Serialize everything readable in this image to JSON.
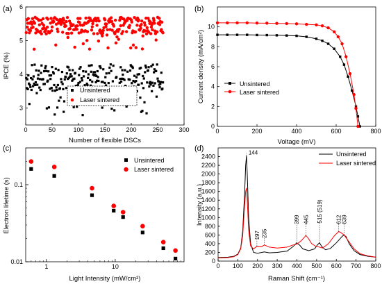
{
  "chart_data": [
    {
      "panel": "(a)",
      "type": "scatter",
      "xlabel": "Number of flexible DSCs",
      "ylabel": "IPCE (%)",
      "xlim": [
        0,
        300
      ],
      "ylim": [
        2.5,
        6.0
      ],
      "xticks": [
        0,
        50,
        100,
        150,
        200,
        250,
        300
      ],
      "yticks": [
        3,
        4,
        5,
        6
      ],
      "legend": "bottom-right, dashed box",
      "series": [
        {
          "name": "Unsintered",
          "marker": "square",
          "color": "#000000",
          "n": 260,
          "typical_range": [
            3.5,
            4.3
          ],
          "mean": 4.05,
          "min": 2.75
        },
        {
          "name": "Laser sintered",
          "marker": "circle",
          "color": "#ff0000",
          "n": 260,
          "typical_range": [
            5.2,
            5.7
          ],
          "mean": 5.45,
          "min": 4.7
        }
      ]
    },
    {
      "panel": "(b)",
      "type": "line",
      "xlabel": "Voltage (mV)",
      "ylabel": "Current density (mA/cm²)",
      "xlim": [
        0,
        800
      ],
      "ylim": [
        0,
        12
      ],
      "xticks": [
        0,
        200,
        400,
        600,
        800
      ],
      "yticks": [
        0,
        2,
        4,
        6,
        8,
        10
      ],
      "legend": "bottom-left",
      "series": [
        {
          "name": "Unsintered",
          "marker": "square",
          "color": "#000000",
          "x": [
            0,
            50,
            100,
            150,
            200,
            250,
            300,
            350,
            400,
            450,
            500,
            530,
            560,
            590,
            620,
            640,
            660,
            680,
            700,
            710,
            720
          ],
          "y": [
            9.2,
            9.2,
            9.2,
            9.2,
            9.18,
            9.17,
            9.15,
            9.13,
            9.1,
            9.0,
            8.8,
            8.6,
            8.3,
            7.8,
            7.0,
            6.2,
            5.0,
            3.6,
            2.0,
            1.0,
            0
          ]
        },
        {
          "name": "Laser sintered",
          "marker": "circle",
          "color": "#ff0000",
          "x": [
            0,
            50,
            100,
            150,
            200,
            250,
            300,
            350,
            400,
            450,
            500,
            530,
            560,
            590,
            610,
            630,
            650,
            670,
            690,
            700,
            710
          ],
          "y": [
            10.4,
            10.4,
            10.4,
            10.4,
            10.38,
            10.37,
            10.35,
            10.33,
            10.3,
            10.25,
            10.2,
            10.1,
            9.9,
            9.5,
            9.0,
            8.3,
            7.0,
            5.3,
            3.2,
            1.8,
            0
          ]
        }
      ]
    },
    {
      "panel": "(c)",
      "type": "scatter",
      "xlabel": "Light Intensity (mW/cm²)",
      "ylabel": "Electron lifetime (s)",
      "xscale": "log",
      "yscale": "log",
      "xlim": [
        0.5,
        100
      ],
      "ylim": [
        0.01,
        0.3
      ],
      "legend": "top-right",
      "series": [
        {
          "name": "Unsintered",
          "marker": "square",
          "color": "#000000",
          "x": [
            0.6,
            1.3,
            4.6,
            9.5,
            13,
            25,
            50,
            75
          ],
          "y": [
            0.16,
            0.13,
            0.073,
            0.046,
            0.038,
            0.024,
            0.015,
            0.011
          ]
        },
        {
          "name": "Laser sintered",
          "marker": "circle",
          "color": "#ff0000",
          "x": [
            0.6,
            1.3,
            4.6,
            9.5,
            13,
            25,
            50,
            75
          ],
          "y": [
            0.2,
            0.17,
            0.09,
            0.053,
            0.044,
            0.029,
            0.018,
            0.014
          ]
        }
      ]
    },
    {
      "panel": "(d)",
      "type": "line",
      "xlabel": "Raman Shift (cm⁻¹)",
      "ylabel": "Intensity (a.u.)",
      "xlim": [
        0,
        800
      ],
      "ylim": [
        0,
        2600
      ],
      "xticks": [
        0,
        100,
        200,
        300,
        400,
        500,
        600,
        700,
        800
      ],
      "yticks": [
        0,
        200,
        400,
        600,
        800,
        1000,
        1200,
        1400,
        1600,
        1800,
        2000,
        2200,
        2400
      ],
      "legend": "top-right",
      "annotations": [
        "144",
        "197",
        "235",
        "399",
        "445",
        "515 (519)",
        "612",
        "639"
      ],
      "series": [
        {
          "name": "Unsintered",
          "color": "#000000",
          "x": [
            0,
            50,
            80,
            100,
            115,
            125,
            135,
            140,
            144,
            148,
            155,
            165,
            180,
            200,
            235,
            260,
            300,
            350,
            380,
            399,
            415,
            430,
            460,
            490,
            505,
            515,
            525,
            545,
            570,
            600,
            620,
            630,
            639,
            650,
            665,
            690,
            720,
            760,
            800
          ],
          "y": [
            80,
            90,
            110,
            160,
            300,
            700,
            1600,
            2200,
            2420,
            2000,
            1000,
            400,
            200,
            180,
            210,
            190,
            200,
            230,
            330,
            420,
            360,
            280,
            240,
            280,
            380,
            420,
            340,
            260,
            290,
            420,
            520,
            570,
            600,
            560,
            400,
            240,
            150,
            110,
            90
          ]
        },
        {
          "name": "Laser sintered",
          "color": "#ff0000",
          "x": [
            0,
            50,
            80,
            100,
            115,
            125,
            135,
            140,
            144,
            148,
            155,
            165,
            180,
            197,
            220,
            235,
            260,
            300,
            350,
            380,
            399,
            420,
            440,
            445,
            455,
            475,
            495,
            515,
            530,
            560,
            590,
            612,
            625,
            639,
            660,
            690,
            720,
            760,
            800
          ],
          "y": [
            70,
            80,
            100,
            150,
            280,
            600,
            1300,
            1600,
            1680,
            1400,
            700,
            350,
            280,
            340,
            330,
            370,
            320,
            300,
            320,
            370,
            390,
            460,
            560,
            590,
            540,
            400,
            340,
            320,
            300,
            400,
            580,
            680,
            650,
            600,
            470,
            280,
            170,
            120,
            90
          ]
        }
      ]
    }
  ]
}
